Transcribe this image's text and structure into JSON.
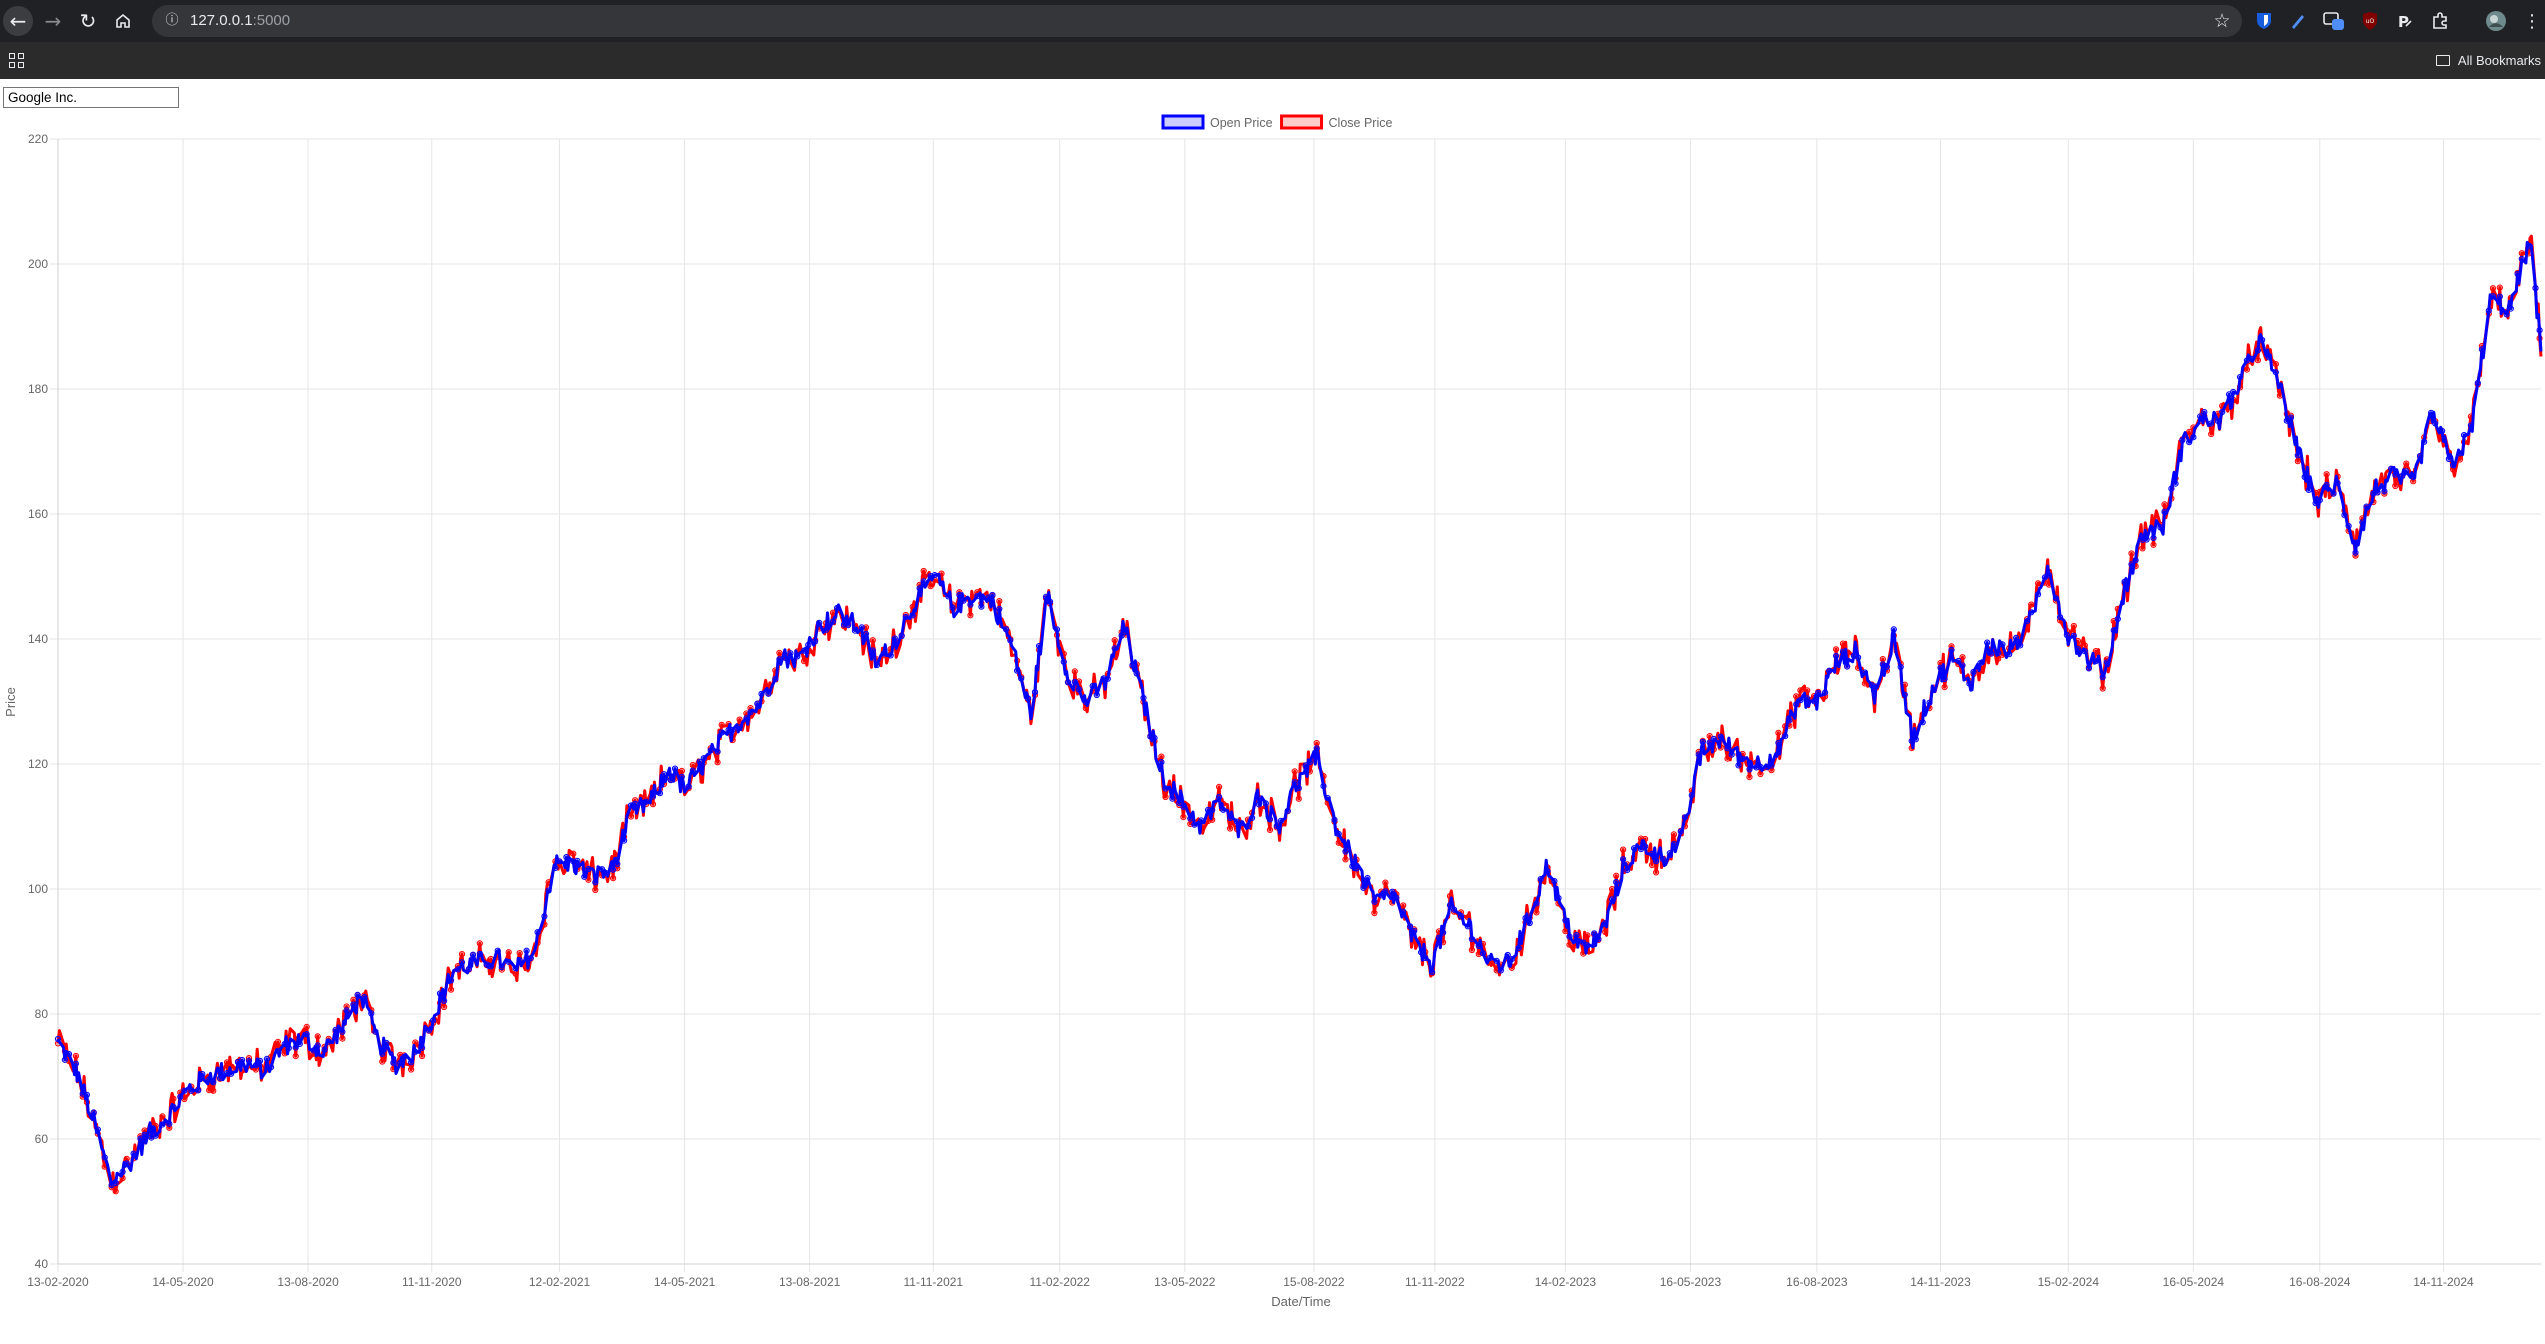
{
  "browser": {
    "url_host": "127.0.0.1",
    "url_port": ":5000",
    "bookmarks_label": "All Bookmarks"
  },
  "controls": {
    "company_select_value": "Google Inc."
  },
  "chart_data": {
    "type": "line",
    "title": "",
    "xlabel": "Date/Time",
    "ylabel": "Price",
    "ylim": [
      40,
      220
    ],
    "y_ticks": [
      40,
      60,
      80,
      100,
      120,
      140,
      160,
      180,
      200,
      220
    ],
    "x_range": [
      "13-02-2020",
      "24-01-2025"
    ],
    "x_tick_labels": [
      "13-02-2020",
      "14-05-2020",
      "13-08-2020",
      "11-11-2020",
      "12-02-2021",
      "14-05-2021",
      "13-08-2021",
      "11-11-2021",
      "11-02-2022",
      "13-05-2022",
      "15-08-2022",
      "11-11-2022",
      "14-02-2023",
      "16-05-2023",
      "16-08-2023",
      "14-11-2023",
      "15-02-2024",
      "16-05-2024",
      "16-08-2024",
      "14-11-2024"
    ],
    "legend_position": "top",
    "grid": true,
    "series": [
      {
        "name": "Open Price",
        "color": "#0000ff",
        "fill": "rgba(0,0,255,0.2)"
      },
      {
        "name": "Close Price",
        "color": "#ff0000",
        "fill": "rgba(255,0,0,0.2)"
      }
    ],
    "approx_points": [
      [
        "13-02-2020",
        75.5
      ],
      [
        "27-02-2020",
        70.5
      ],
      [
        "09-03-2020",
        63.5
      ],
      [
        "23-03-2020",
        53
      ],
      [
        "06-04-2020",
        56.5
      ],
      [
        "20-04-2020",
        61
      ],
      [
        "04-05-2020",
        64
      ],
      [
        "18-05-2020",
        68
      ],
      [
        "01-06-2020",
        70
      ],
      [
        "15-06-2020",
        71
      ],
      [
        "29-06-2020",
        72
      ],
      [
        "13-07-2020",
        71
      ],
      [
        "27-07-2020",
        75
      ],
      [
        "10-08-2020",
        76
      ],
      [
        "24-08-2020",
        74
      ],
      [
        "07-09-2020",
        78
      ],
      [
        "21-09-2020",
        83
      ],
      [
        "02-10-2020",
        76
      ],
      [
        "16-10-2020",
        72
      ],
      [
        "30-10-2020",
        74
      ],
      [
        "13-11-2020",
        80
      ],
      [
        "27-11-2020",
        87
      ],
      [
        "11-12-2020",
        88
      ],
      [
        "28-12-2020",
        89
      ],
      [
        "11-01-2021",
        87
      ],
      [
        "25-01-2021",
        90
      ],
      [
        "08-02-2021",
        104
      ],
      [
        "22-02-2021",
        104
      ],
      [
        "08-03-2021",
        102
      ],
      [
        "22-03-2021",
        103
      ],
      [
        "05-04-2021",
        112
      ],
      [
        "19-04-2021",
        114
      ],
      [
        "03-05-2021",
        119
      ],
      [
        "14-05-2021",
        116
      ],
      [
        "28-05-2021",
        120
      ],
      [
        "11-06-2021",
        124
      ],
      [
        "25-06-2021",
        127
      ],
      [
        "09-07-2021",
        130
      ],
      [
        "23-07-2021",
        137
      ],
      [
        "06-08-2021",
        137
      ],
      [
        "20-08-2021",
        142
      ],
      [
        "03-09-2021",
        144
      ],
      [
        "17-09-2021",
        142
      ],
      [
        "01-10-2021",
        136
      ],
      [
        "15-10-2021",
        140
      ],
      [
        "29-10-2021",
        146
      ],
      [
        "12-11-2021",
        150
      ],
      [
        "26-11-2021",
        145
      ],
      [
        "10-12-2021",
        147
      ],
      [
        "24-12-2021",
        146
      ],
      [
        "07-01-2022",
        139
      ],
      [
        "21-01-2022",
        128
      ],
      [
        "02-02-2022",
        147
      ],
      [
        "16-02-2022",
        135
      ],
      [
        "02-03-2022",
        130
      ],
      [
        "16-03-2022",
        133
      ],
      [
        "30-03-2022",
        142
      ],
      [
        "13-04-2022",
        130
      ],
      [
        "27-04-2022",
        118
      ],
      [
        "11-05-2022",
        114
      ],
      [
        "25-05-2022",
        110
      ],
      [
        "08-06-2022",
        114
      ],
      [
        "22-06-2022",
        109
      ],
      [
        "06-07-2022",
        115
      ],
      [
        "20-07-2022",
        110
      ],
      [
        "03-08-2022",
        117
      ],
      [
        "17-08-2022",
        121
      ],
      [
        "31-08-2022",
        110
      ],
      [
        "14-09-2022",
        104
      ],
      [
        "28-09-2022",
        98
      ],
      [
        "12-10-2022",
        99
      ],
      [
        "26-10-2022",
        92
      ],
      [
        "09-11-2022",
        88
      ],
      [
        "23-11-2022",
        97
      ],
      [
        "07-12-2022",
        94
      ],
      [
        "21-12-2022",
        88
      ],
      [
        "04-01-2023",
        88
      ],
      [
        "18-01-2023",
        95
      ],
      [
        "01-02-2023",
        104
      ],
      [
        "15-02-2023",
        94
      ],
      [
        "01-03-2023",
        90
      ],
      [
        "15-03-2023",
        94
      ],
      [
        "29-03-2023",
        104
      ],
      [
        "12-04-2023",
        107
      ],
      [
        "26-04-2023",
        105
      ],
      [
        "10-05-2023",
        108
      ],
      [
        "24-05-2023",
        122
      ],
      [
        "07-06-2023",
        124
      ],
      [
        "21-06-2023",
        121
      ],
      [
        "05-07-2023",
        120
      ],
      [
        "19-07-2023",
        122
      ],
      [
        "02-08-2023",
        130
      ],
      [
        "16-08-2023",
        130
      ],
      [
        "30-08-2023",
        136
      ],
      [
        "13-09-2023",
        138
      ],
      [
        "27-09-2023",
        131
      ],
      [
        "11-10-2023",
        140
      ],
      [
        "25-10-2023",
        124
      ],
      [
        "08-11-2023",
        132
      ],
      [
        "22-11-2023",
        137
      ],
      [
        "06-12-2023",
        133
      ],
      [
        "20-12-2023",
        139
      ],
      [
        "03-01-2024",
        138
      ],
      [
        "17-01-2024",
        142
      ],
      [
        "31-01-2024",
        152
      ],
      [
        "14-02-2024",
        141
      ],
      [
        "28-02-2024",
        137
      ],
      [
        "13-03-2024",
        135
      ],
      [
        "27-03-2024",
        148
      ],
      [
        "10-04-2024",
        157
      ],
      [
        "24-04-2024",
        158
      ],
      [
        "08-05-2024",
        171
      ],
      [
        "22-05-2024",
        175
      ],
      [
        "05-06-2024",
        175
      ],
      [
        "19-06-2024",
        181
      ],
      [
        "03-07-2024",
        188
      ],
      [
        "17-07-2024",
        181
      ],
      [
        "31-07-2024",
        170
      ],
      [
        "14-08-2024",
        162
      ],
      [
        "28-08-2024",
        165
      ],
      [
        "11-09-2024",
        155
      ],
      [
        "25-09-2024",
        164
      ],
      [
        "09-10-2024",
        166
      ],
      [
        "23-10-2024",
        165
      ],
      [
        "06-11-2024",
        176
      ],
      [
        "20-11-2024",
        168
      ],
      [
        "04-12-2024",
        173
      ],
      [
        "18-12-2024",
        194
      ],
      [
        "02-01-2025",
        193
      ],
      [
        "16-01-2025",
        204
      ],
      [
        "24-01-2025",
        186
      ]
    ]
  }
}
